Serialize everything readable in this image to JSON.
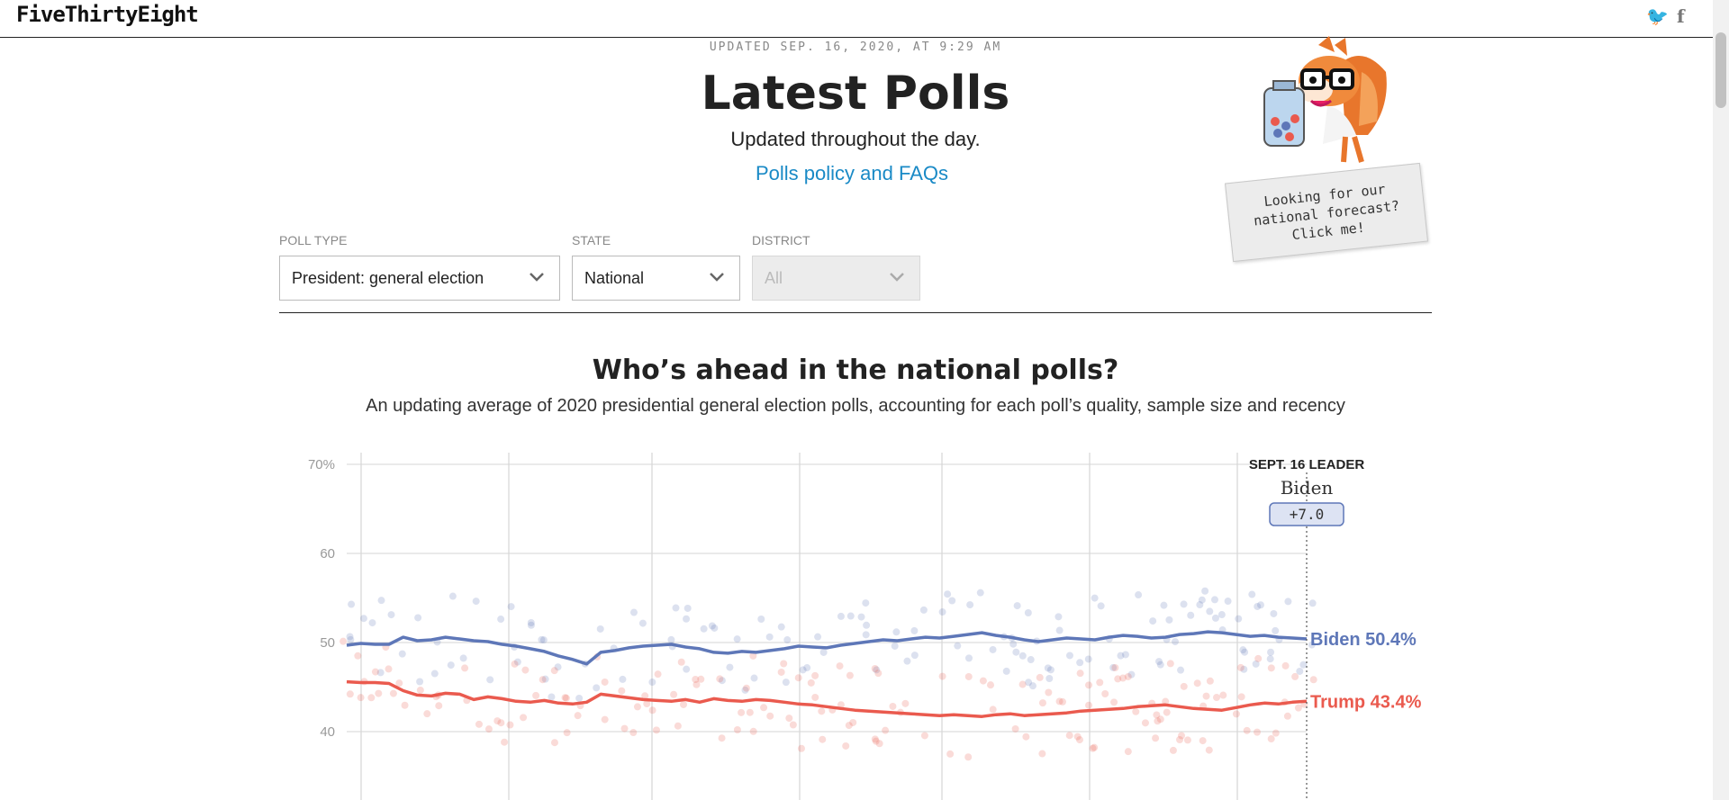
{
  "header": {
    "logo": "FiveThirtyEight",
    "twitter_icon": "twitter-icon",
    "facebook_icon": "facebook-icon",
    "twitter_glyph": "🐦",
    "facebook_glyph": "f"
  },
  "page": {
    "updated": "UPDATED SEP. 16, 2020, AT 9:29 AM",
    "title": "Latest Polls",
    "subtitle": "Updated throughout the day.",
    "policy_link": "Polls policy and FAQs"
  },
  "forecast_promo": {
    "line1": "Looking for our",
    "line2": "national forecast?",
    "line3": "Click me!",
    "mascot_icon": "fox-mascot-icon"
  },
  "filters": {
    "poll_type": {
      "label": "POLL TYPE",
      "value": "President: general election"
    },
    "state": {
      "label": "STATE",
      "value": "National"
    },
    "district": {
      "label": "DISTRICT",
      "value": "All",
      "disabled": true
    },
    "chevron": "⌄"
  },
  "chart_section": {
    "title": "Who’s ahead in the national polls?",
    "subtitle": "An updating average of 2020 presidential general election polls, accounting for each poll’s quality, sample size and recency"
  },
  "chart_data": {
    "type": "line",
    "y_ticks": [
      "70%",
      "60",
      "50",
      "40"
    ],
    "y_tick_values": [
      70,
      60,
      50,
      40
    ],
    "ylim": [
      35,
      71
    ],
    "grid": true,
    "leader": {
      "date_label": "SEPT. 16 LEADER",
      "name": "Biden",
      "margin": "+7.0"
    },
    "colors": {
      "biden": "#5e77b8",
      "trump": "#ea5a4e"
    },
    "series": [
      {
        "name": "Biden",
        "end_label": "Biden 50.4%",
        "values": [
          49.7,
          49.9,
          49.8,
          49.8,
          50.6,
          50.2,
          50.3,
          50.6,
          50.4,
          50.2,
          50.1,
          49.8,
          49.6,
          49.3,
          49.0,
          48.5,
          48.1,
          47.6,
          48.9,
          49.1,
          49.4,
          49.6,
          49.7,
          49.8,
          49.5,
          49.3,
          48.9,
          48.8,
          49.0,
          48.9,
          49.1,
          49.3,
          49.6,
          49.5,
          49.4,
          49.7,
          49.9,
          50.1,
          50.3,
          50.2,
          50.4,
          50.6,
          50.5,
          50.7,
          50.9,
          51.1,
          50.8,
          50.6,
          50.3,
          50.1,
          50.3,
          50.5,
          50.4,
          50.3,
          50.6,
          50.8,
          50.7,
          50.5,
          50.6,
          50.9,
          51.0,
          51.2,
          51.1,
          50.9,
          50.7,
          50.8,
          50.6,
          50.5,
          50.4
        ]
      },
      {
        "name": "Trump",
        "end_label": "Trump 43.4%",
        "values": [
          45.6,
          45.5,
          45.5,
          45.4,
          44.6,
          44.1,
          44.0,
          44.3,
          44.2,
          43.6,
          43.9,
          43.7,
          43.4,
          43.3,
          43.5,
          43.2,
          43.1,
          43.3,
          44.2,
          44.0,
          43.8,
          43.6,
          43.5,
          43.4,
          43.6,
          43.3,
          43.7,
          43.5,
          43.4,
          43.6,
          43.5,
          43.3,
          43.1,
          43.0,
          42.8,
          42.6,
          42.4,
          42.3,
          42.2,
          42.1,
          42.0,
          41.9,
          41.8,
          41.9,
          41.8,
          41.7,
          41.9,
          42.0,
          41.8,
          41.9,
          42.0,
          42.1,
          42.3,
          42.4,
          42.5,
          42.6,
          42.8,
          42.9,
          43.0,
          42.8,
          42.6,
          42.5,
          42.4,
          42.7,
          43.0,
          43.2,
          43.1,
          43.3,
          43.4
        ]
      }
    ]
  }
}
